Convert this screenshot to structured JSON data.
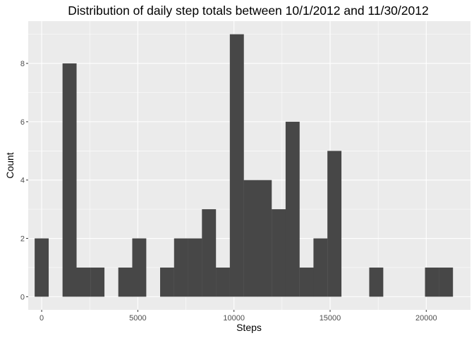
{
  "chart_data": {
    "type": "bar",
    "title": "Distribution of daily step totals between 10/1/2012 and 11/30/2012",
    "xlabel": "Steps",
    "ylabel": "Count",
    "xlim": [
      -700,
      22300
    ],
    "ylim": [
      -0.45,
      9.45
    ],
    "x_ticks": [
      0,
      5000,
      10000,
      15000,
      20000
    ],
    "x_tick_labels": [
      "0",
      "5000",
      "10000",
      "15000",
      "20000"
    ],
    "y_ticks": [
      0,
      2,
      4,
      6,
      8
    ],
    "y_tick_labels": [
      "0",
      "2",
      "4",
      "6",
      "8"
    ],
    "bin_width": 730,
    "bin_centers": [
      0,
      1450,
      2175,
      2900,
      4350,
      5075,
      6525,
      7250,
      7975,
      8700,
      9425,
      10150,
      10875,
      11600,
      12325,
      13050,
      13775,
      14500,
      15225,
      17400,
      20300,
      21025
    ],
    "values": [
      2,
      8,
      1,
      1,
      1,
      2,
      1,
      2,
      2,
      3,
      1,
      9,
      4,
      4,
      3,
      6,
      1,
      2,
      5,
      1,
      1,
      1
    ],
    "grid": true,
    "legend": "none",
    "colors": {
      "panel_background": "#EBEBEB",
      "grid_major": "#FFFFFF",
      "bar_fill": "#474747"
    }
  }
}
